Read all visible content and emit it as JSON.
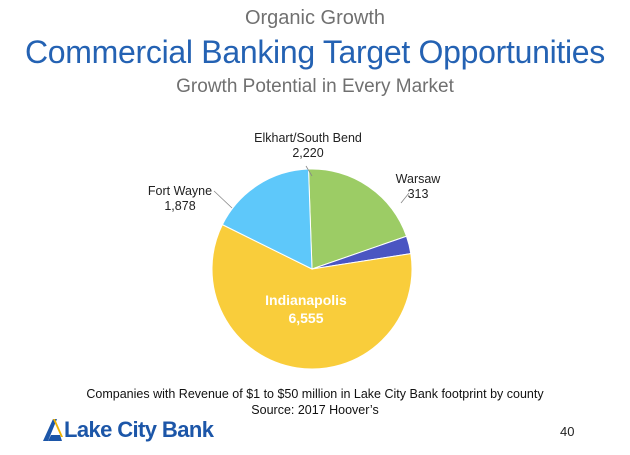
{
  "header": {
    "kicker": "Organic Growth",
    "title": "Commercial Banking Target Opportunities",
    "subtitle": "Growth Potential in Every Market"
  },
  "chart_data": {
    "type": "pie",
    "slices": [
      {
        "name": "Elkhart/South Bend",
        "value": 2220,
        "label": "2,220",
        "color": "#9ccc65"
      },
      {
        "name": "Warsaw",
        "value": 313,
        "label": "313",
        "color": "#4a55c2"
      },
      {
        "name": "Indianapolis",
        "value": 6555,
        "label": "6,555",
        "color": "#f9cd3b"
      },
      {
        "name": "Fort Wayne",
        "value": 1878,
        "label": "1,878",
        "color": "#5ec8fa"
      }
    ]
  },
  "footer": {
    "note": "Companies with Revenue of $1 to $50 million in Lake City Bank footprint by county",
    "source": "Source: 2017 Hoover’s",
    "logo_text": "Lake City Bank",
    "page_number": "40"
  }
}
